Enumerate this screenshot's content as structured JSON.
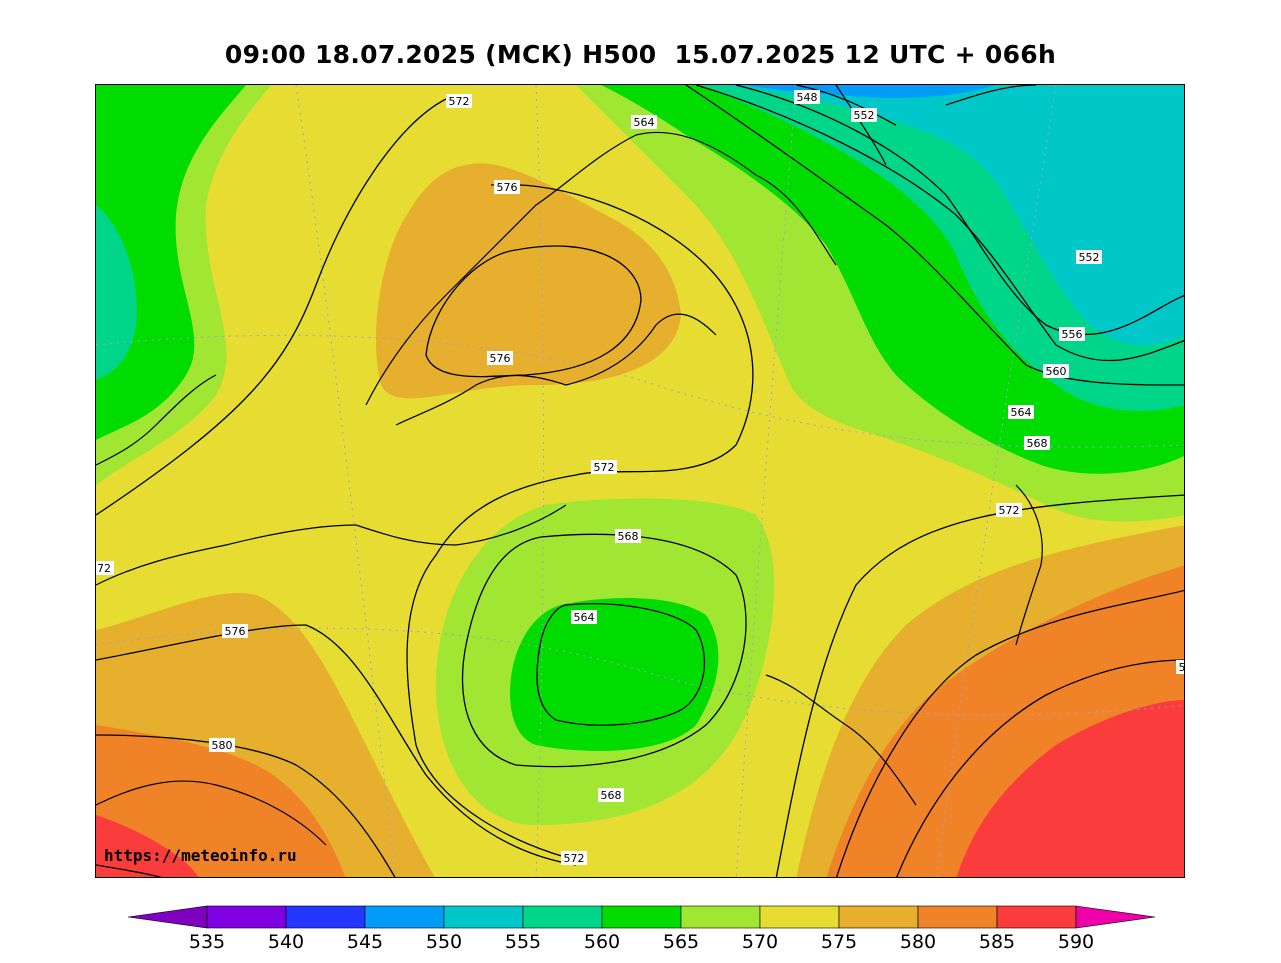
{
  "title": "09:00 18.07.2025 (МСК) H500  15.07.2025 12 UTC + 066h",
  "url": "https://meteoinfo.ru",
  "contour_labels": [
    "572",
    "548",
    "552",
    "564",
    "576",
    "552",
    "556",
    "560",
    "564",
    "568",
    "576",
    "572",
    "572",
    "568",
    "564",
    "72",
    "576",
    "580",
    "568",
    "572",
    "5"
  ],
  "colorbar": {
    "ticks": [
      "535",
      "540",
      "545",
      "550",
      "555",
      "560",
      "565",
      "570",
      "575",
      "580",
      "585",
      "590"
    ],
    "colors": [
      "#7f00bf",
      "#7f00e0",
      "#2436ff",
      "#009cf7",
      "#00c8c8",
      "#00d68a",
      "#00dc00",
      "#a0e632",
      "#e6dc32",
      "#e6af2d",
      "#f08228",
      "#fa3c3c",
      "#ee00aa"
    ]
  }
}
